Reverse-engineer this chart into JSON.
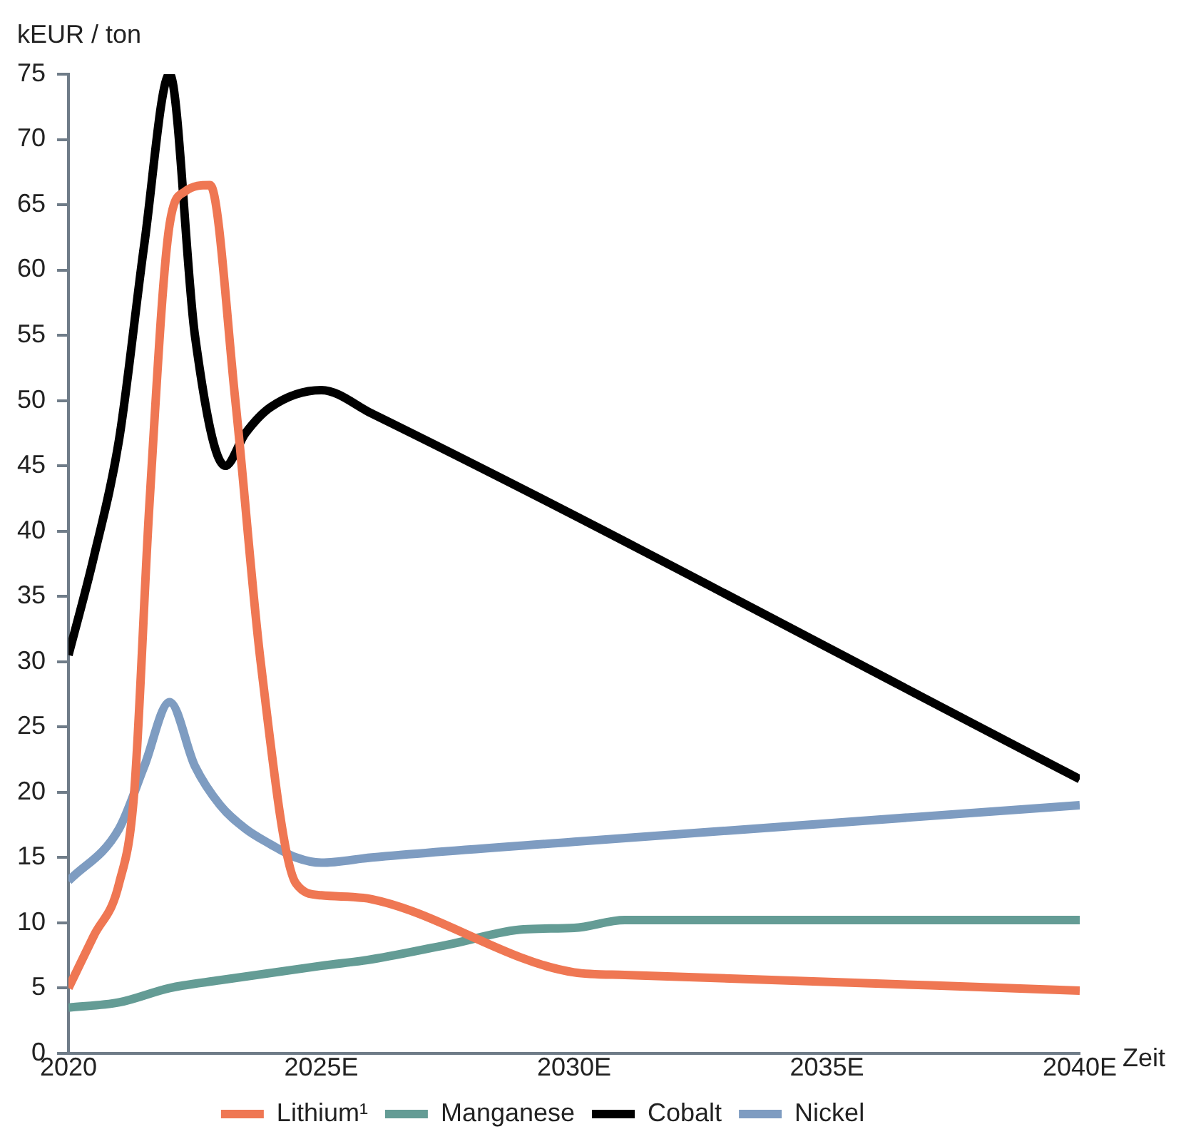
{
  "chart_data": {
    "type": "line",
    "ylabel": "kEUR / ton",
    "xlabel": "Zeit",
    "xlim": [
      2020,
      2040
    ],
    "xticks": [
      {
        "value": 2020,
        "label": "2020"
      },
      {
        "value": 2025,
        "label": "2025E"
      },
      {
        "value": 2030,
        "label": "2030E"
      },
      {
        "value": 2035,
        "label": "2035E"
      },
      {
        "value": 2040,
        "label": "2040E"
      }
    ],
    "ylim": [
      0,
      75
    ],
    "yticks": [
      0,
      5,
      10,
      15,
      20,
      25,
      30,
      35,
      40,
      45,
      50,
      55,
      60,
      65,
      70,
      75
    ],
    "grid": false,
    "legend": "bottom",
    "marker": "none",
    "line_style": "solid",
    "series": [
      {
        "name": "Lithium¹",
        "color": "#ef7753",
        "x": [
          2020,
          2020.5,
          2021,
          2021.3,
          2021.6,
          2022,
          2022.3,
          2022.8,
          2023.3,
          2023.8,
          2024.5,
          2025,
          2026,
          2030,
          2031,
          2040
        ],
        "values": [
          5,
          9,
          13,
          20,
          42,
          63.5,
          66,
          66.5,
          50,
          30,
          13,
          12.1,
          11.8,
          6.2,
          6,
          4.8
        ]
      },
      {
        "name": "Manganese",
        "color": "#649c95",
        "x": [
          2020,
          2021,
          2022,
          2023,
          2025,
          2026,
          2027.6,
          2029,
          2030,
          2031,
          2040
        ],
        "values": [
          3.5,
          3.9,
          5,
          5.6,
          6.7,
          7.2,
          8.4,
          9.5,
          9.6,
          10.2,
          10.2
        ]
      },
      {
        "name": "Cobalt",
        "color": "#000000",
        "x": [
          2020,
          2020.5,
          2021,
          2021.5,
          2022,
          2022.5,
          2023.1,
          2023.5,
          2024,
          2025,
          2026,
          2040
        ],
        "values": [
          30.5,
          38,
          47,
          62,
          75,
          55,
          45,
          47.5,
          49.5,
          50.8,
          49,
          21
        ]
      },
      {
        "name": "Nickel",
        "color": "#7e9cc1",
        "x": [
          2020,
          2021,
          2021.5,
          2022,
          2022.5,
          2023,
          2023.5,
          2024,
          2024.5,
          2025,
          2026,
          2030,
          2040
        ],
        "values": [
          13.2,
          17.2,
          22,
          26.9,
          22,
          19,
          17.2,
          16,
          15,
          14.6,
          15,
          16.2,
          19
        ]
      }
    ]
  }
}
